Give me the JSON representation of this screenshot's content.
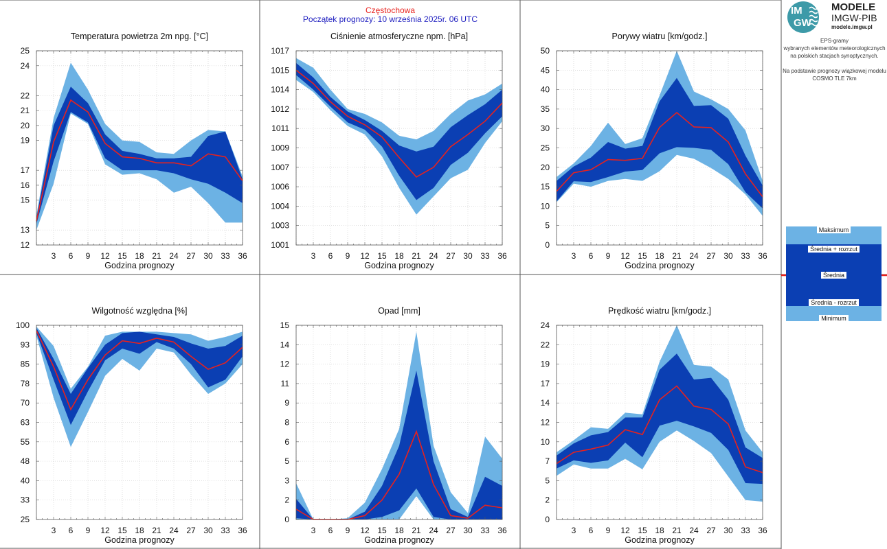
{
  "header": {
    "city": "Częstochowa",
    "start": "Początek prognozy: 10 września 2025r. 06 UTC"
  },
  "logo": {
    "mark_top": "IM",
    "mark_bottom": "GW",
    "brand_line1": "MODELE",
    "brand_line2": "IMGW-PIB",
    "brand_line3": "modele.imgw.pl"
  },
  "description": [
    "EPS-gramy",
    "wybranych elementów meteorologicznych",
    "na polskich stacjach  synoptycznych.",
    "",
    "Na podstawie prognozy wiązkowej modelu",
    "COSMO TLE 7km"
  ],
  "legend": {
    "max": "Maksimum",
    "mean_plus": "Średnia + rozrzut",
    "mean": "Średnia",
    "mean_minus": "Średnia - rozrzut",
    "min": "Minimum"
  },
  "colors": {
    "light_band": "#6cb2e4",
    "dark_band": "#0b3fb3",
    "mean_line": "#e8211d",
    "header_city": "#e8211d",
    "header_start": "#1d1dbf"
  },
  "chart_data": [
    {
      "type": "area",
      "title": "Temperatura powietrza 2m npg. [°C]",
      "xlabel": "Godzina prognozy",
      "xlim": [
        0,
        36
      ],
      "ylim": [
        12,
        25
      ],
      "yticks": [
        12,
        13,
        15,
        16,
        17,
        19,
        20,
        21,
        22,
        24,
        25
      ],
      "yticklabels": [
        "12",
        "13",
        "15",
        "16",
        "17",
        "19",
        "20",
        "21",
        "22",
        "24",
        "25"
      ],
      "xticks": [
        3,
        6,
        9,
        12,
        15,
        18,
        21,
        24,
        27,
        30,
        33,
        36
      ],
      "x": [
        0,
        3,
        6,
        9,
        12,
        15,
        18,
        21,
        24,
        27,
        30,
        33,
        36
      ],
      "max": [
        14.0,
        20.5,
        24.2,
        22.4,
        20.1,
        19.0,
        18.9,
        18.2,
        18.1,
        19.0,
        19.7,
        19.6,
        16.6
      ],
      "mean_plus": [
        13.8,
        20.0,
        22.6,
        21.5,
        19.4,
        18.3,
        18.1,
        17.8,
        17.8,
        17.9,
        19.3,
        19.6,
        16.4
      ],
      "mean": [
        13.6,
        18.9,
        21.7,
        20.9,
        18.8,
        17.9,
        17.8,
        17.5,
        17.5,
        17.3,
        18.1,
        17.9,
        16.3
      ],
      "mean_minus": [
        13.4,
        17.6,
        20.9,
        20.2,
        17.8,
        17.0,
        17.0,
        17.0,
        16.8,
        16.4,
        16.1,
        15.5,
        14.8
      ],
      "min": [
        13.0,
        16.1,
        20.8,
        20.1,
        17.4,
        16.7,
        16.8,
        16.4,
        15.5,
        15.9,
        14.8,
        13.5,
        13.5
      ]
    },
    {
      "type": "area",
      "title": "Ciśnienie atmosferyczne npm. [hPa]",
      "xlabel": "Godzina prognozy",
      "xlim": [
        0,
        36
      ],
      "ylim": [
        1001,
        1017
      ],
      "yticks": [
        1001,
        1002.6,
        1004.2,
        1005.8,
        1007.4,
        1009.0,
        1010.6,
        1012.2,
        1013.8,
        1015.4,
        1017
      ],
      "yticklabels": [
        "1001",
        "1003",
        "1004",
        "1006",
        "1007",
        "1009",
        "1011",
        "1012",
        "1014",
        "1015",
        "1017"
      ],
      "xticks": [
        3,
        6,
        9,
        12,
        15,
        18,
        21,
        24,
        27,
        30,
        33,
        36
      ],
      "x": [
        0,
        3,
        6,
        9,
        12,
        15,
        18,
        21,
        24,
        27,
        30,
        33,
        36
      ],
      "max": [
        1016.4,
        1015.6,
        1013.8,
        1012.2,
        1011.8,
        1011.1,
        1010.0,
        1009.7,
        1010.4,
        1011.8,
        1012.9,
        1013.4,
        1014.3
      ],
      "mean_plus": [
        1016.0,
        1014.8,
        1013.2,
        1012.0,
        1011.3,
        1010.4,
        1009.2,
        1008.7,
        1009.1,
        1010.7,
        1011.7,
        1012.6,
        1013.8
      ],
      "mean": [
        1015.4,
        1014.3,
        1012.8,
        1011.6,
        1010.9,
        1009.9,
        1008.2,
        1006.6,
        1007.4,
        1009.1,
        1010.1,
        1011.2,
        1012.7
      ],
      "mean_minus": [
        1015.0,
        1013.8,
        1012.4,
        1011.1,
        1010.5,
        1009.1,
        1006.7,
        1004.7,
        1005.7,
        1007.6,
        1008.6,
        1010.2,
        1011.6
      ],
      "min": [
        1014.6,
        1013.6,
        1012.1,
        1010.8,
        1010.1,
        1008.3,
        1005.7,
        1003.5,
        1005.0,
        1006.5,
        1007.2,
        1009.4,
        1011.2
      ]
    },
    {
      "type": "area",
      "title": "Porywy wiatru [km/godz.]",
      "xlabel": "Godzina prognozy",
      "xlim": [
        0,
        36
      ],
      "ylim": [
        0,
        50
      ],
      "yticks": [
        0,
        5,
        10,
        15,
        20,
        25,
        30,
        35,
        40,
        45,
        50
      ],
      "yticklabels": [
        "0",
        "5",
        "10",
        "15",
        "20",
        "25",
        "30",
        "35",
        "40",
        "45",
        "50"
      ],
      "xticks": [
        3,
        6,
        9,
        12,
        15,
        18,
        21,
        24,
        27,
        30,
        33,
        36
      ],
      "x": [
        0,
        3,
        6,
        9,
        12,
        15,
        18,
        21,
        24,
        27,
        30,
        33,
        36
      ],
      "max": [
        17.5,
        21.0,
        25.5,
        31.5,
        26.0,
        27.5,
        38.5,
        50.0,
        39.5,
        37.5,
        35.0,
        29.5,
        16.5
      ],
      "mean_plus": [
        16.5,
        20.2,
        22.5,
        26.5,
        24.8,
        25.5,
        37.0,
        43.0,
        35.8,
        36.0,
        32.5,
        23.0,
        15.3
      ],
      "mean": [
        13.8,
        18.6,
        19.4,
        22.0,
        21.8,
        22.3,
        30.3,
        34.1,
        30.4,
        30.2,
        26.5,
        18.3,
        12.4
      ],
      "mean_minus": [
        11.2,
        16.4,
        16.2,
        17.5,
        18.9,
        19.3,
        23.6,
        25.2,
        25.0,
        24.5,
        20.8,
        13.6,
        9.4
      ],
      "min": [
        11.0,
        15.8,
        15.0,
        16.5,
        17.0,
        16.5,
        19.0,
        23.2,
        22.2,
        19.8,
        17.0,
        13.0,
        7.5
      ]
    },
    {
      "type": "area",
      "title": "Wilgotność względna [%]",
      "xlabel": "Godzina prognozy",
      "xlim": [
        0,
        36
      ],
      "ylim": [
        25,
        100
      ],
      "yticks": [
        25,
        32.5,
        40,
        47.5,
        55,
        62.5,
        70,
        77.5,
        85,
        92.5,
        100
      ],
      "yticklabels": [
        "25",
        "33",
        "40",
        "48",
        "55",
        "63",
        "70",
        "78",
        "85",
        "93",
        "100"
      ],
      "xticks": [
        3,
        6,
        9,
        12,
        15,
        18,
        21,
        24,
        27,
        30,
        33,
        36
      ],
      "x": [
        0,
        3,
        6,
        9,
        12,
        15,
        18,
        21,
        24,
        27,
        30,
        33,
        36
      ],
      "max": [
        99.5,
        92.0,
        75.5,
        84.0,
        96.0,
        97.5,
        97.5,
        97.5,
        97.0,
        96.5,
        94.0,
        95.5,
        97.5
      ],
      "mean_plus": [
        99.0,
        87.0,
        73.5,
        83.5,
        92.5,
        97.0,
        97.5,
        96.5,
        95.5,
        93.0,
        91.0,
        92.0,
        96.0
      ],
      "mean": [
        98.0,
        84.0,
        67.5,
        79.0,
        88.5,
        94.0,
        93.0,
        95.0,
        93.5,
        88.0,
        83.0,
        85.5,
        91.5
      ],
      "mean_minus": [
        97.0,
        79.0,
        61.5,
        74.5,
        86.5,
        91.0,
        89.0,
        93.5,
        91.0,
        85.0,
        76.0,
        79.0,
        88.0
      ],
      "min": [
        96.0,
        72.0,
        53.0,
        66.5,
        80.5,
        87.0,
        82.5,
        91.0,
        89.5,
        81.0,
        73.5,
        77.5,
        85.0
      ]
    },
    {
      "type": "area",
      "title": "Opad [mm]",
      "xlabel": "Godzina prognozy",
      "xlim": [
        0,
        36
      ],
      "ylim": [
        0,
        15
      ],
      "yticks": [
        0,
        1.5,
        3,
        4.5,
        6,
        7.5,
        9,
        10.5,
        12,
        13.5,
        15
      ],
      "yticklabels": [
        "0",
        "2",
        "3",
        "5",
        "6",
        "8",
        "9",
        "11",
        "12",
        "14",
        "15"
      ],
      "xticks": [
        3,
        6,
        9,
        12,
        15,
        18,
        21,
        24,
        27,
        30,
        33,
        36
      ],
      "x": [
        0,
        3,
        6,
        9,
        12,
        15,
        18,
        21,
        24,
        27,
        30,
        33,
        36
      ],
      "max": [
        2.8,
        0.0,
        0.0,
        0.1,
        1.3,
        3.9,
        7.0,
        14.5,
        5.7,
        2.1,
        0.5,
        6.4,
        4.7
      ],
      "mean_plus": [
        1.6,
        0.0,
        0.0,
        0.0,
        0.6,
        2.6,
        5.7,
        11.5,
        4.5,
        0.8,
        0.2,
        3.3,
        2.6
      ],
      "mean": [
        0.8,
        0.0,
        0.0,
        0.0,
        0.3,
        1.5,
        3.5,
        6.8,
        2.7,
        0.3,
        0.1,
        1.1,
        0.9
      ],
      "mean_minus": [
        0.1,
        0.0,
        0.0,
        0.0,
        0.0,
        0.2,
        0.7,
        2.4,
        0.2,
        0.0,
        0.0,
        0.0,
        0.0
      ],
      "min": [
        0.0,
        0.0,
        0.0,
        0.0,
        0.0,
        0.0,
        0.0,
        1.8,
        0.0,
        0.0,
        0.0,
        0.0,
        0.0
      ]
    },
    {
      "type": "area",
      "title": "Prędkość wiatru [km/godz.]",
      "xlabel": "Godzina prognozy",
      "xlim": [
        0,
        36
      ],
      "ylim": [
        0,
        24
      ],
      "yticks": [
        0,
        2.4,
        4.8,
        7.2,
        9.6,
        12,
        14.4,
        16.8,
        19.2,
        21.6,
        24
      ],
      "yticklabels": [
        "0",
        "2",
        "5",
        "7",
        "10",
        "12",
        "14",
        "17",
        "19",
        "22",
        "24"
      ],
      "xticks": [
        3,
        6,
        9,
        12,
        15,
        18,
        21,
        24,
        27,
        30,
        33,
        36
      ],
      "x": [
        0,
        3,
        6,
        9,
        12,
        15,
        18,
        21,
        24,
        27,
        30,
        33,
        36
      ],
      "max": [
        8.3,
        9.8,
        11.4,
        11.2,
        13.2,
        13.0,
        19.5,
        24.0,
        19.1,
        18.9,
        17.3,
        11.0,
        8.3
      ],
      "mean_plus": [
        7.9,
        9.4,
        10.4,
        10.8,
        12.6,
        12.6,
        18.5,
        20.5,
        17.3,
        17.5,
        14.8,
        8.9,
        7.6
      ],
      "mean": [
        6.9,
        8.3,
        8.7,
        9.2,
        11.1,
        10.5,
        14.8,
        16.5,
        14.0,
        13.6,
        11.8,
        6.5,
        5.8
      ],
      "mean_minus": [
        6.3,
        7.3,
        7.0,
        7.3,
        9.5,
        7.7,
        11.6,
        12.2,
        11.5,
        10.7,
        8.6,
        4.5,
        4.4
      ],
      "min": [
        5.4,
        6.8,
        6.3,
        6.3,
        7.5,
        6.2,
        9.6,
        11.0,
        9.7,
        8.2,
        5.3,
        2.4,
        2.2
      ]
    }
  ]
}
